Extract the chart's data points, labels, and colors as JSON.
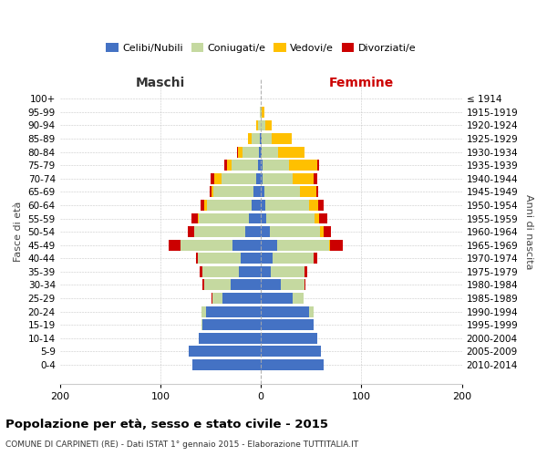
{
  "age_groups": [
    "0-4",
    "5-9",
    "10-14",
    "15-19",
    "20-24",
    "25-29",
    "30-34",
    "35-39",
    "40-44",
    "45-49",
    "50-54",
    "55-59",
    "60-64",
    "65-69",
    "70-74",
    "75-79",
    "80-84",
    "85-89",
    "90-94",
    "95-99",
    "100+"
  ],
  "birth_years": [
    "2010-2014",
    "2005-2009",
    "2000-2004",
    "1995-1999",
    "1990-1994",
    "1985-1989",
    "1980-1984",
    "1975-1979",
    "1970-1974",
    "1965-1969",
    "1960-1964",
    "1955-1959",
    "1950-1954",
    "1945-1949",
    "1940-1944",
    "1935-1939",
    "1930-1934",
    "1925-1929",
    "1920-1924",
    "1915-1919",
    "≤ 1914"
  ],
  "male": {
    "celibi": [
      68,
      72,
      62,
      58,
      55,
      38,
      30,
      22,
      20,
      28,
      16,
      12,
      9,
      7,
      5,
      3,
      2,
      1,
      0,
      0,
      0
    ],
    "coniugati": [
      0,
      0,
      0,
      1,
      4,
      10,
      26,
      36,
      43,
      52,
      50,
      50,
      45,
      40,
      34,
      26,
      16,
      8,
      3,
      1,
      0
    ],
    "vedovi": [
      0,
      0,
      0,
      0,
      0,
      0,
      0,
      0,
      0,
      0,
      0,
      1,
      2,
      2,
      7,
      5,
      5,
      4,
      2,
      0,
      0
    ],
    "divorziati": [
      0,
      0,
      0,
      0,
      0,
      1,
      2,
      3,
      2,
      12,
      7,
      6,
      4,
      2,
      4,
      2,
      1,
      0,
      0,
      0,
      0
    ]
  },
  "female": {
    "nubili": [
      62,
      60,
      56,
      52,
      48,
      32,
      20,
      10,
      12,
      16,
      9,
      5,
      4,
      3,
      2,
      2,
      1,
      1,
      0,
      0,
      0
    ],
    "coniugate": [
      0,
      0,
      0,
      0,
      4,
      10,
      23,
      33,
      40,
      52,
      50,
      48,
      44,
      36,
      30,
      26,
      16,
      10,
      4,
      1,
      0
    ],
    "vedove": [
      0,
      0,
      0,
      0,
      0,
      0,
      0,
      0,
      0,
      1,
      3,
      5,
      9,
      16,
      20,
      28,
      26,
      20,
      7,
      2,
      0
    ],
    "divorziate": [
      0,
      0,
      0,
      0,
      0,
      0,
      1,
      3,
      4,
      12,
      8,
      8,
      5,
      2,
      4,
      2,
      0,
      0,
      0,
      0,
      0
    ]
  },
  "colors": {
    "celibi": "#4472c4",
    "coniugati": "#c5d9a0",
    "vedovi": "#ffc000",
    "divorziati": "#cc0000"
  },
  "title": "Popolazione per età, sesso e stato civile - 2015",
  "subtitle": "COMUNE DI CARPINETI (RE) - Dati ISTAT 1° gennaio 2015 - Elaborazione TUTTITALIA.IT",
  "xlabel_left": "Maschi",
  "xlabel_right": "Femmine",
  "ylabel_left": "Fasce di età",
  "ylabel_right": "Anni di nascita",
  "xlim": 200,
  "background_color": "#ffffff",
  "grid_color": "#bbbbbb"
}
